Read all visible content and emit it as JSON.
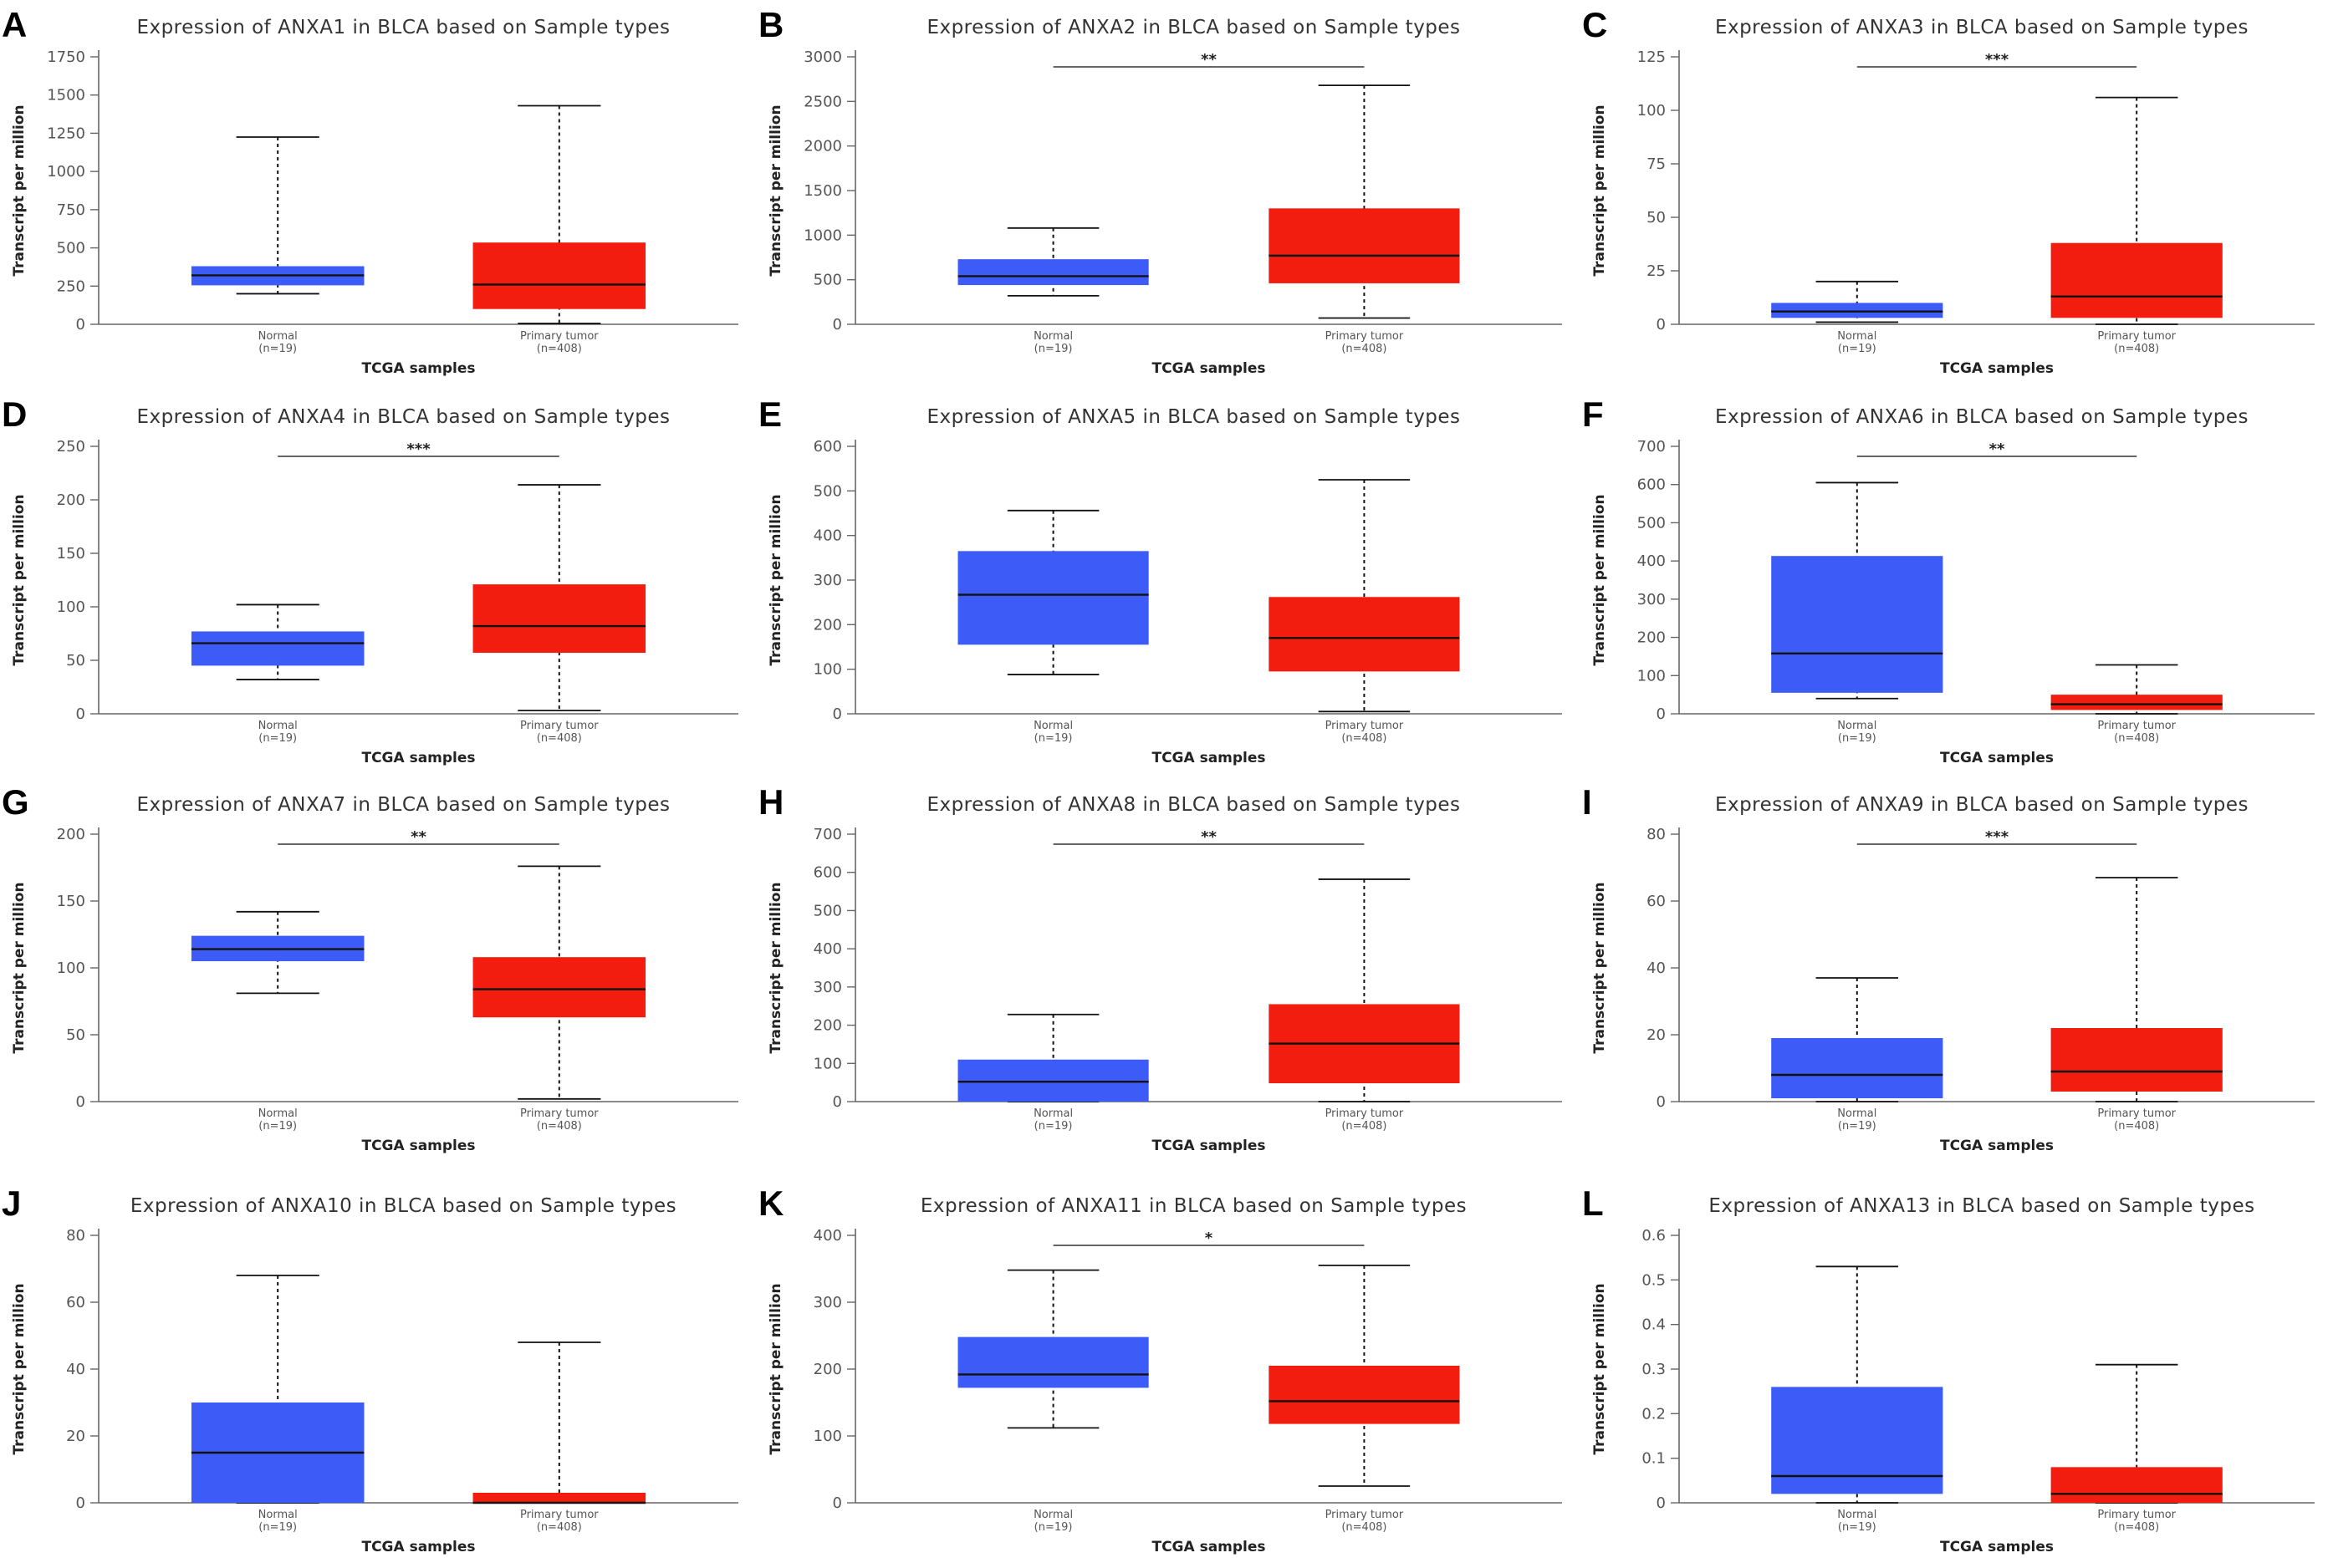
{
  "figure": {
    "background": "#ffffff",
    "normal_color": "#3d5cf7",
    "tumor_color": "#f21d0f"
  },
  "shared": {
    "ylabel": "Transcript per million",
    "xlabel": "TCGA samples",
    "group_labels": [
      "Normal",
      "Primary tumor"
    ],
    "group_counts": [
      "(n=19)",
      "(n=408)"
    ]
  },
  "chart_data": [
    {
      "panel": "A",
      "type": "box",
      "title": "Expression of ANXA1 in BLCA based on Sample types",
      "xlabel": "TCGA samples",
      "ylabel": "Transcript per million",
      "categories": [
        "Normal",
        "Primary tumor"
      ],
      "counts": [
        "(n=19)",
        "(n=408)"
      ],
      "ylim": [
        0,
        1750
      ],
      "yticks": [
        0,
        250,
        500,
        750,
        1000,
        1250,
        1500,
        1750
      ],
      "boxes": [
        {
          "name": "Normal",
          "min": 200,
          "q1": 255,
          "median": 320,
          "q3": 380,
          "max": 1225
        },
        {
          "name": "Primary tumor",
          "min": 5,
          "q1": 100,
          "median": 260,
          "q3": 535,
          "max": 1430
        }
      ],
      "significance": ""
    },
    {
      "panel": "B",
      "type": "box",
      "title": "Expression of ANXA2 in BLCA based on Sample types",
      "xlabel": "TCGA samples",
      "ylabel": "Transcript per million",
      "categories": [
        "Normal",
        "Primary tumor"
      ],
      "counts": [
        "(n=19)",
        "(n=408)"
      ],
      "ylim": [
        0,
        3000
      ],
      "yticks": [
        0,
        500,
        1000,
        1500,
        2000,
        2500,
        3000
      ],
      "boxes": [
        {
          "name": "Normal",
          "min": 320,
          "q1": 440,
          "median": 540,
          "q3": 730,
          "max": 1080
        },
        {
          "name": "Primary tumor",
          "min": 70,
          "q1": 460,
          "median": 770,
          "q3": 1300,
          "max": 2680
        }
      ],
      "significance": "**"
    },
    {
      "panel": "C",
      "type": "box",
      "title": "Expression of ANXA3 in BLCA based on Sample types",
      "xlabel": "TCGA samples",
      "ylabel": "Transcript per million",
      "categories": [
        "Normal",
        "Primary tumor"
      ],
      "counts": [
        "(n=19)",
        "(n=408)"
      ],
      "ylim": [
        0,
        125
      ],
      "yticks": [
        0,
        25,
        50,
        75,
        100,
        125
      ],
      "boxes": [
        {
          "name": "Normal",
          "min": 1,
          "q1": 3,
          "median": 6,
          "q3": 10,
          "max": 20
        },
        {
          "name": "Primary tumor",
          "min": 0,
          "q1": 3,
          "median": 13,
          "q3": 38,
          "max": 106
        }
      ],
      "significance": "***"
    },
    {
      "panel": "D",
      "type": "box",
      "title": "Expression of ANXA4 in BLCA based on Sample types",
      "xlabel": "TCGA samples",
      "ylabel": "Transcript per million",
      "categories": [
        "Normal",
        "Primary tumor"
      ],
      "counts": [
        "(n=19)",
        "(n=408)"
      ],
      "ylim": [
        0,
        250
      ],
      "yticks": [
        0,
        50,
        100,
        150,
        200,
        250
      ],
      "boxes": [
        {
          "name": "Normal",
          "min": 32,
          "q1": 45,
          "median": 66,
          "q3": 77,
          "max": 102
        },
        {
          "name": "Primary tumor",
          "min": 3,
          "q1": 57,
          "median": 82,
          "q3": 121,
          "max": 214
        }
      ],
      "significance": "***"
    },
    {
      "panel": "E",
      "type": "box",
      "title": "Expression of ANXA5 in BLCA based on Sample types",
      "xlabel": "TCGA samples",
      "ylabel": "Transcript per million",
      "categories": [
        "Normal",
        "Primary tumor"
      ],
      "counts": [
        "(n=19)",
        "(n=408)"
      ],
      "ylim": [
        0,
        600
      ],
      "yticks": [
        0,
        100,
        200,
        300,
        400,
        500,
        600
      ],
      "boxes": [
        {
          "name": "Normal",
          "min": 88,
          "q1": 155,
          "median": 267,
          "q3": 365,
          "max": 456
        },
        {
          "name": "Primary tumor",
          "min": 5,
          "q1": 95,
          "median": 170,
          "q3": 262,
          "max": 525
        }
      ],
      "significance": ""
    },
    {
      "panel": "F",
      "type": "box",
      "title": "Expression of ANXA6 in BLCA based on Sample types",
      "xlabel": "TCGA samples",
      "ylabel": "Transcript per million",
      "categories": [
        "Normal",
        "Primary tumor"
      ],
      "counts": [
        "(n=19)",
        "(n=408)"
      ],
      "ylim": [
        0,
        700
      ],
      "yticks": [
        0,
        100,
        200,
        300,
        400,
        500,
        600,
        700
      ],
      "boxes": [
        {
          "name": "Normal",
          "min": 40,
          "q1": 55,
          "median": 158,
          "q3": 413,
          "max": 605
        },
        {
          "name": "Primary tumor",
          "min": 0,
          "q1": 10,
          "median": 25,
          "q3": 50,
          "max": 128
        }
      ],
      "significance": "**"
    },
    {
      "panel": "G",
      "type": "box",
      "title": "Expression of ANXA7 in BLCA based on Sample types",
      "xlabel": "TCGA samples",
      "ylabel": "Transcript per million",
      "categories": [
        "Normal",
        "Primary tumor"
      ],
      "counts": [
        "(n=19)",
        "(n=408)"
      ],
      "ylim": [
        0,
        200
      ],
      "yticks": [
        0,
        50,
        100,
        150,
        200
      ],
      "boxes": [
        {
          "name": "Normal",
          "min": 81,
          "q1": 105,
          "median": 114,
          "q3": 124,
          "max": 142
        },
        {
          "name": "Primary tumor",
          "min": 2,
          "q1": 63,
          "median": 84,
          "q3": 108,
          "max": 176
        }
      ],
      "significance": "**"
    },
    {
      "panel": "H",
      "type": "box",
      "title": "Expression of ANXA8 in BLCA based on Sample types",
      "xlabel": "TCGA samples",
      "ylabel": "Transcript per million",
      "categories": [
        "Normal",
        "Primary tumor"
      ],
      "counts": [
        "(n=19)",
        "(n=408)"
      ],
      "ylim": [
        0,
        700
      ],
      "yticks": [
        0,
        100,
        200,
        300,
        400,
        500,
        600,
        700
      ],
      "boxes": [
        {
          "name": "Normal",
          "min": 0,
          "q1": 0,
          "median": 52,
          "q3": 110,
          "max": 228
        },
        {
          "name": "Primary tumor",
          "min": 0,
          "q1": 48,
          "median": 152,
          "q3": 255,
          "max": 582
        }
      ],
      "significance": "**"
    },
    {
      "panel": "I",
      "type": "box",
      "title": "Expression of ANXA9 in BLCA based on Sample types",
      "xlabel": "TCGA samples",
      "ylabel": "Transcript per million",
      "categories": [
        "Normal",
        "Primary tumor"
      ],
      "counts": [
        "(n=19)",
        "(n=408)"
      ],
      "ylim": [
        0,
        80
      ],
      "yticks": [
        0,
        20,
        40,
        60,
        80
      ],
      "boxes": [
        {
          "name": "Normal",
          "min": 0,
          "q1": 1,
          "median": 8,
          "q3": 19,
          "max": 37
        },
        {
          "name": "Primary tumor",
          "min": 0,
          "q1": 3,
          "median": 9,
          "q3": 22,
          "max": 67
        }
      ],
      "significance": "***"
    },
    {
      "panel": "J",
      "type": "box",
      "title": "Expression of ANXA10 in BLCA based on Sample types",
      "xlabel": "TCGA samples",
      "ylabel": "Transcript per million",
      "categories": [
        "Normal",
        "Primary tumor"
      ],
      "counts": [
        "(n=19)",
        "(n=408)"
      ],
      "ylim": [
        0,
        80
      ],
      "yticks": [
        0,
        20,
        40,
        60,
        80
      ],
      "boxes": [
        {
          "name": "Normal",
          "min": 0,
          "q1": 0,
          "median": 15,
          "q3": 30,
          "max": 68
        },
        {
          "name": "Primary tumor",
          "min": 0,
          "q1": 0,
          "median": 0,
          "q3": 3,
          "max": 48
        }
      ],
      "significance": ""
    },
    {
      "panel": "K",
      "type": "box",
      "title": "Expression of ANXA11 in BLCA based on Sample types",
      "xlabel": "TCGA samples",
      "ylabel": "Transcript per million",
      "categories": [
        "Normal",
        "Primary tumor"
      ],
      "counts": [
        "(n=19)",
        "(n=408)"
      ],
      "ylim": [
        0,
        400
      ],
      "yticks": [
        0,
        100,
        200,
        300,
        400
      ],
      "boxes": [
        {
          "name": "Normal",
          "min": 112,
          "q1": 172,
          "median": 192,
          "q3": 248,
          "max": 348
        },
        {
          "name": "Primary tumor",
          "min": 25,
          "q1": 118,
          "median": 152,
          "q3": 205,
          "max": 355
        }
      ],
      "significance": "*"
    },
    {
      "panel": "L",
      "type": "box",
      "title": "Expression of ANXA13 in BLCA based on Sample types",
      "xlabel": "TCGA samples",
      "ylabel": "Transcript per million",
      "categories": [
        "Normal",
        "Primary tumor"
      ],
      "counts": [
        "(n=19)",
        "(n=408)"
      ],
      "ylim": [
        0,
        0.6
      ],
      "yticks": [
        0,
        0.1,
        0.2,
        0.3,
        0.4,
        0.5,
        0.6
      ],
      "boxes": [
        {
          "name": "Normal",
          "min": 0,
          "q1": 0.02,
          "median": 0.06,
          "q3": 0.26,
          "max": 0.53
        },
        {
          "name": "Primary tumor",
          "min": 0,
          "q1": 0,
          "median": 0.02,
          "q3": 0.08,
          "max": 0.31
        }
      ],
      "significance": ""
    }
  ]
}
